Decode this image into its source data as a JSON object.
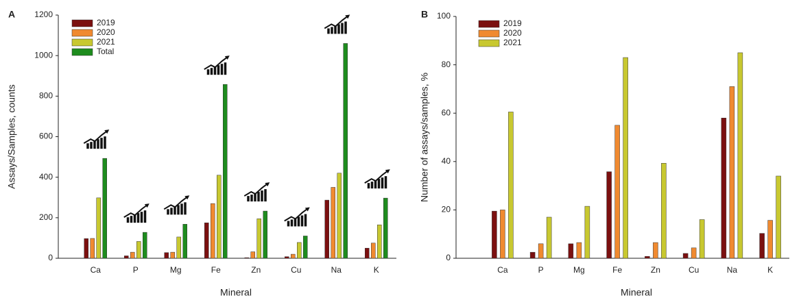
{
  "chart_data": [
    {
      "type": "bar",
      "label": "A",
      "xlabel": "Mineral",
      "ylabel": "Assays/Samples, counts",
      "categories": [
        "Ca",
        "P",
        "Mg",
        "Fe",
        "Zn",
        "Cu",
        "Na",
        "K"
      ],
      "series": [
        {
          "name": "2019",
          "color": "#7b1010",
          "values": [
            97,
            12,
            28,
            175,
            3,
            8,
            287,
            50
          ]
        },
        {
          "name": "2020",
          "color": "#f08a30",
          "values": [
            98,
            30,
            30,
            270,
            32,
            20,
            350,
            75
          ]
        },
        {
          "name": "2021",
          "color": "#c8c830",
          "values": [
            298,
            83,
            105,
            410,
            195,
            78,
            420,
            165
          ]
        },
        {
          "name": "Total",
          "color": "#1e8c1e",
          "values": [
            493,
            128,
            168,
            858,
            233,
            110,
            1060,
            297
          ]
        }
      ],
      "ylim": [
        0,
        1200
      ],
      "yticks": [
        0,
        200,
        400,
        600,
        800,
        1000,
        1200
      ],
      "grid": false,
      "legend": "upper-left",
      "trend_icons": true
    },
    {
      "type": "bar",
      "label": "B",
      "xlabel": "Mineral",
      "ylabel": "Number of assays/samples, %",
      "categories": [
        "Ca",
        "P",
        "Mg",
        "Fe",
        "Zn",
        "Cu",
        "Na",
        "K"
      ],
      "series": [
        {
          "name": "2019",
          "color": "#7b1010",
          "values": [
            19.5,
            2.5,
            6,
            35.8,
            0.8,
            2,
            58,
            10.3
          ]
        },
        {
          "name": "2020",
          "color": "#f08a30",
          "values": [
            20,
            6,
            6.5,
            55,
            6.5,
            4.3,
            71,
            15.7
          ]
        },
        {
          "name": "2021",
          "color": "#c8c830",
          "values": [
            60.5,
            17,
            21.5,
            83,
            39.3,
            16,
            85,
            34
          ]
        }
      ],
      "ylim": [
        0,
        100
      ],
      "yticks": [
        0,
        20,
        40,
        60,
        80,
        100
      ],
      "grid": false,
      "legend": "upper-left",
      "trend_icons": false
    }
  ]
}
